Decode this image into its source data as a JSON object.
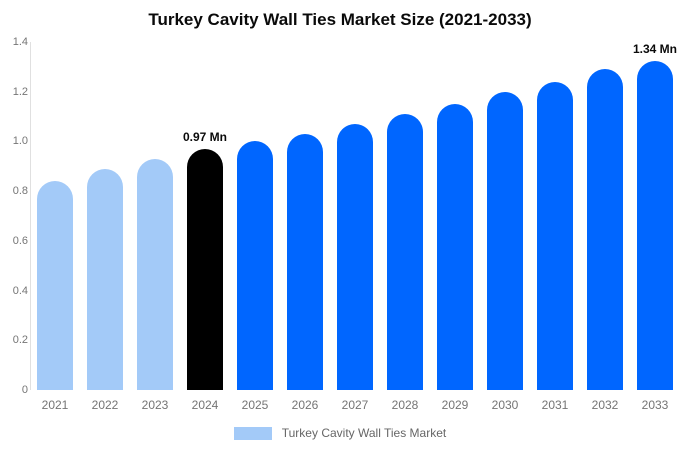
{
  "title": "Turkey Cavity Wall Ties Market Size (2021-2033)",
  "legend": {
    "label": "Turkey Cavity Wall Ties Market",
    "swatch_color": "#A3CAF8"
  },
  "chart_data": {
    "type": "bar",
    "title": "Turkey Cavity Wall Ties Market Size (2021-2033)",
    "unit": "Mn",
    "xlabel": "",
    "ylabel": "",
    "ylim": [
      0,
      1.4
    ],
    "ytick_labels": [
      "0",
      "0.2",
      "0.4",
      "0.6",
      "0.8",
      "1.0",
      "1.2",
      "1.4"
    ],
    "grid": false,
    "legend_position": "bottom",
    "categories": [
      "2021",
      "2022",
      "2023",
      "2024",
      "2025",
      "2026",
      "2027",
      "2028",
      "2029",
      "2030",
      "2031",
      "2032",
      "2033"
    ],
    "series": [
      {
        "name": "Turkey Cavity Wall Ties Market",
        "values": [
          0.84,
          0.89,
          0.93,
          0.97,
          1.0,
          1.03,
          1.07,
          1.11,
          1.15,
          1.2,
          1.24,
          1.29,
          1.34
        ]
      }
    ],
    "colors": {
      "historical": "#A3CAF8",
      "highlight": "#000000",
      "forecast": "#0066FF"
    },
    "points": [
      {
        "category": "2021",
        "value": 0.84,
        "color": "historical",
        "label": ""
      },
      {
        "category": "2022",
        "value": 0.89,
        "color": "historical",
        "label": ""
      },
      {
        "category": "2023",
        "value": 0.93,
        "color": "historical",
        "label": ""
      },
      {
        "category": "2024",
        "value": 0.97,
        "color": "highlight",
        "label": "0.97 Mn"
      },
      {
        "category": "2025",
        "value": 1.0,
        "color": "forecast",
        "label": ""
      },
      {
        "category": "2026",
        "value": 1.03,
        "color": "forecast",
        "label": ""
      },
      {
        "category": "2027",
        "value": 1.07,
        "color": "forecast",
        "label": ""
      },
      {
        "category": "2028",
        "value": 1.11,
        "color": "forecast",
        "label": ""
      },
      {
        "category": "2029",
        "value": 1.15,
        "color": "forecast",
        "label": ""
      },
      {
        "category": "2030",
        "value": 1.2,
        "color": "forecast",
        "label": ""
      },
      {
        "category": "2031",
        "value": 1.24,
        "color": "forecast",
        "label": ""
      },
      {
        "category": "2032",
        "value": 1.29,
        "color": "forecast",
        "label": ""
      },
      {
        "category": "2033",
        "value": 1.34,
        "color": "forecast",
        "label": "1.34 Mn"
      }
    ]
  }
}
